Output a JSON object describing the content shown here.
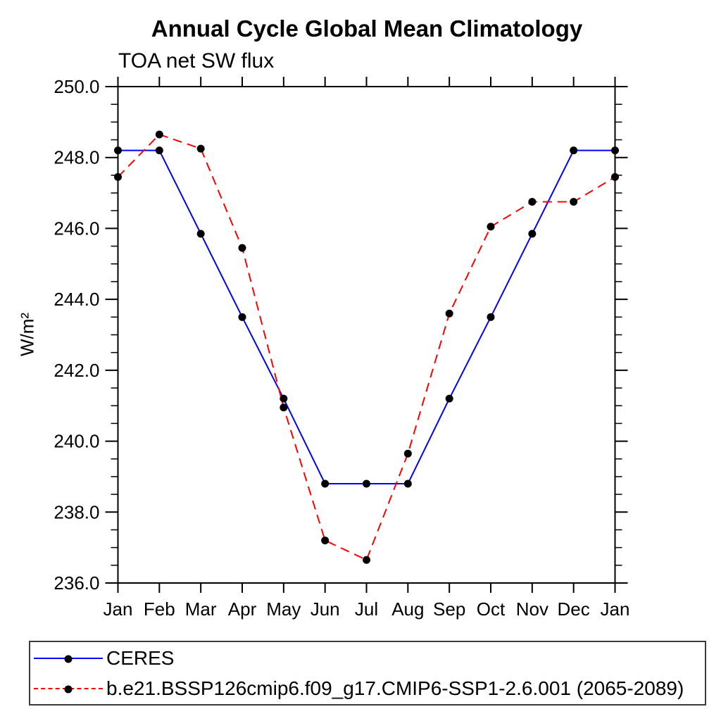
{
  "title": "Annual Cycle Global Mean Climatology",
  "subtitle": "TOA net SW flux",
  "chart_data": {
    "type": "line",
    "x_ticklabels": [
      "Jan",
      "Feb",
      "Mar",
      "Apr",
      "May",
      "Jun",
      "Jul",
      "Aug",
      "Sep",
      "Oct",
      "Nov",
      "Dec",
      "Jan"
    ],
    "ylabel": "W/m²",
    "ylim": [
      236.0,
      250.0
    ],
    "y_major_ticks": [
      236.0,
      238.0,
      240.0,
      242.0,
      244.0,
      246.0,
      248.0,
      250.0
    ],
    "y_ticklabels": [
      "236.0",
      "238.0",
      "240.0",
      "242.0",
      "244.0",
      "246.0",
      "248.0",
      "250.0"
    ],
    "y_minor_step": 0.5,
    "grid": false,
    "legend_position": "bottom-outside-box",
    "axis_color": "#000000",
    "marker": "filled-circle",
    "marker_color": "#000000",
    "series": [
      {
        "name": "CERES",
        "color": "#0000ff",
        "style": "solid",
        "values": [
          248.2,
          248.2,
          245.85,
          243.5,
          241.2,
          238.8,
          238.8,
          238.8,
          241.2,
          243.5,
          245.85,
          248.2,
          248.2
        ]
      },
      {
        "name": "b.e21.BSSP126cmip6.f09_g17.CMIP6-SSP1-2.6.001 (2065-2089)",
        "color": "#ff0000",
        "style": "dashed",
        "values": [
          247.45,
          248.65,
          248.25,
          245.45,
          240.95,
          237.2,
          236.65,
          239.65,
          243.6,
          246.05,
          246.75,
          246.75,
          247.45
        ]
      }
    ]
  }
}
